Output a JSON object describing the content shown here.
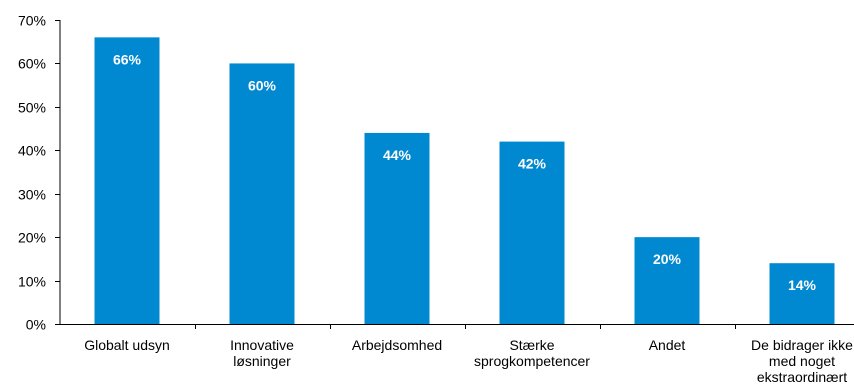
{
  "chart_data": {
    "type": "bar",
    "categories": [
      [
        "Globalt udsyn"
      ],
      [
        "Innovative",
        "løsninger"
      ],
      [
        "Arbejdsomhed"
      ],
      [
        "Stærke",
        "sprogkompetencer"
      ],
      [
        "Andet"
      ],
      [
        "De bidrager ikke",
        "med noget",
        "ekstraordinært"
      ]
    ],
    "values": [
      66,
      60,
      44,
      42,
      20,
      14
    ],
    "data_labels": [
      "66%",
      "60%",
      "44%",
      "42%",
      "20%",
      "14%"
    ],
    "y_ticks": [
      0,
      10,
      20,
      30,
      40,
      50,
      60,
      70
    ],
    "y_tick_labels": [
      "0%",
      "10%",
      "20%",
      "30%",
      "40%",
      "50%",
      "60%",
      "70%"
    ],
    "ylim": [
      0,
      70
    ],
    "grid": false,
    "title": "",
    "xlabel": "",
    "ylabel": "",
    "bar_color": "#0088d1",
    "axis_color": "#000000"
  }
}
